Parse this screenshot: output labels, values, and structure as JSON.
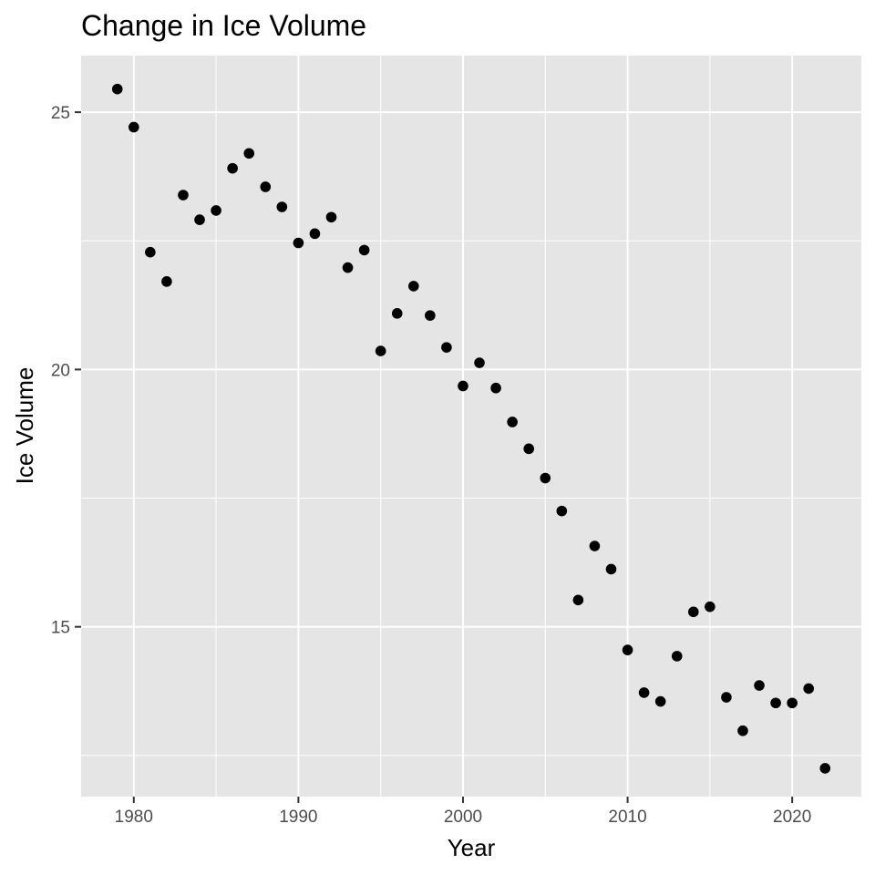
{
  "chart_data": {
    "type": "scatter",
    "title": "Change in Ice Volume",
    "xlabel": "Year",
    "ylabel": "Ice Volume",
    "xlim": [
      1976.8,
      2024.2
    ],
    "ylim": [
      11.7,
      26.1
    ],
    "x_ticks": [
      1980,
      1990,
      2000,
      2010,
      2020
    ],
    "y_ticks": [
      15,
      20,
      25
    ],
    "x_tick_labels": [
      "1980",
      "1990",
      "2000",
      "2010",
      "2020"
    ],
    "y_tick_labels": [
      "15",
      "20",
      "25"
    ],
    "grid": true,
    "legend": "none",
    "colors": {
      "panel": "#e5e5e5",
      "grid": "#ffffff",
      "point": "#000000",
      "tick": "#333333"
    },
    "points": [
      {
        "x": 1979,
        "y": 25.45
      },
      {
        "x": 1980,
        "y": 24.71
      },
      {
        "x": 1981,
        "y": 22.28
      },
      {
        "x": 1982,
        "y": 21.71
      },
      {
        "x": 1983,
        "y": 23.39
      },
      {
        "x": 1984,
        "y": 22.91
      },
      {
        "x": 1985,
        "y": 23.09
      },
      {
        "x": 1986,
        "y": 23.91
      },
      {
        "x": 1987,
        "y": 24.2
      },
      {
        "x": 1988,
        "y": 23.55
      },
      {
        "x": 1989,
        "y": 23.16
      },
      {
        "x": 1990,
        "y": 22.46
      },
      {
        "x": 1991,
        "y": 22.64
      },
      {
        "x": 1992,
        "y": 22.96
      },
      {
        "x": 1993,
        "y": 21.98
      },
      {
        "x": 1994,
        "y": 22.32
      },
      {
        "x": 1995,
        "y": 20.36
      },
      {
        "x": 1996,
        "y": 21.09
      },
      {
        "x": 1997,
        "y": 21.62
      },
      {
        "x": 1998,
        "y": 21.05
      },
      {
        "x": 1999,
        "y": 20.43
      },
      {
        "x": 2000,
        "y": 19.68
      },
      {
        "x": 2001,
        "y": 20.13
      },
      {
        "x": 2002,
        "y": 19.64
      },
      {
        "x": 2003,
        "y": 18.98
      },
      {
        "x": 2004,
        "y": 18.46
      },
      {
        "x": 2005,
        "y": 17.89
      },
      {
        "x": 2006,
        "y": 17.25
      },
      {
        "x": 2007,
        "y": 15.52
      },
      {
        "x": 2008,
        "y": 16.57
      },
      {
        "x": 2009,
        "y": 16.12
      },
      {
        "x": 2010,
        "y": 14.55
      },
      {
        "x": 2011,
        "y": 13.72
      },
      {
        "x": 2012,
        "y": 13.55
      },
      {
        "x": 2013,
        "y": 14.43
      },
      {
        "x": 2014,
        "y": 15.29
      },
      {
        "x": 2015,
        "y": 15.39
      },
      {
        "x": 2016,
        "y": 13.63
      },
      {
        "x": 2017,
        "y": 12.98
      },
      {
        "x": 2018,
        "y": 13.86
      },
      {
        "x": 2019,
        "y": 13.52
      },
      {
        "x": 2020,
        "y": 13.52
      },
      {
        "x": 2021,
        "y": 13.8
      },
      {
        "x": 2022,
        "y": 12.25
      }
    ]
  }
}
